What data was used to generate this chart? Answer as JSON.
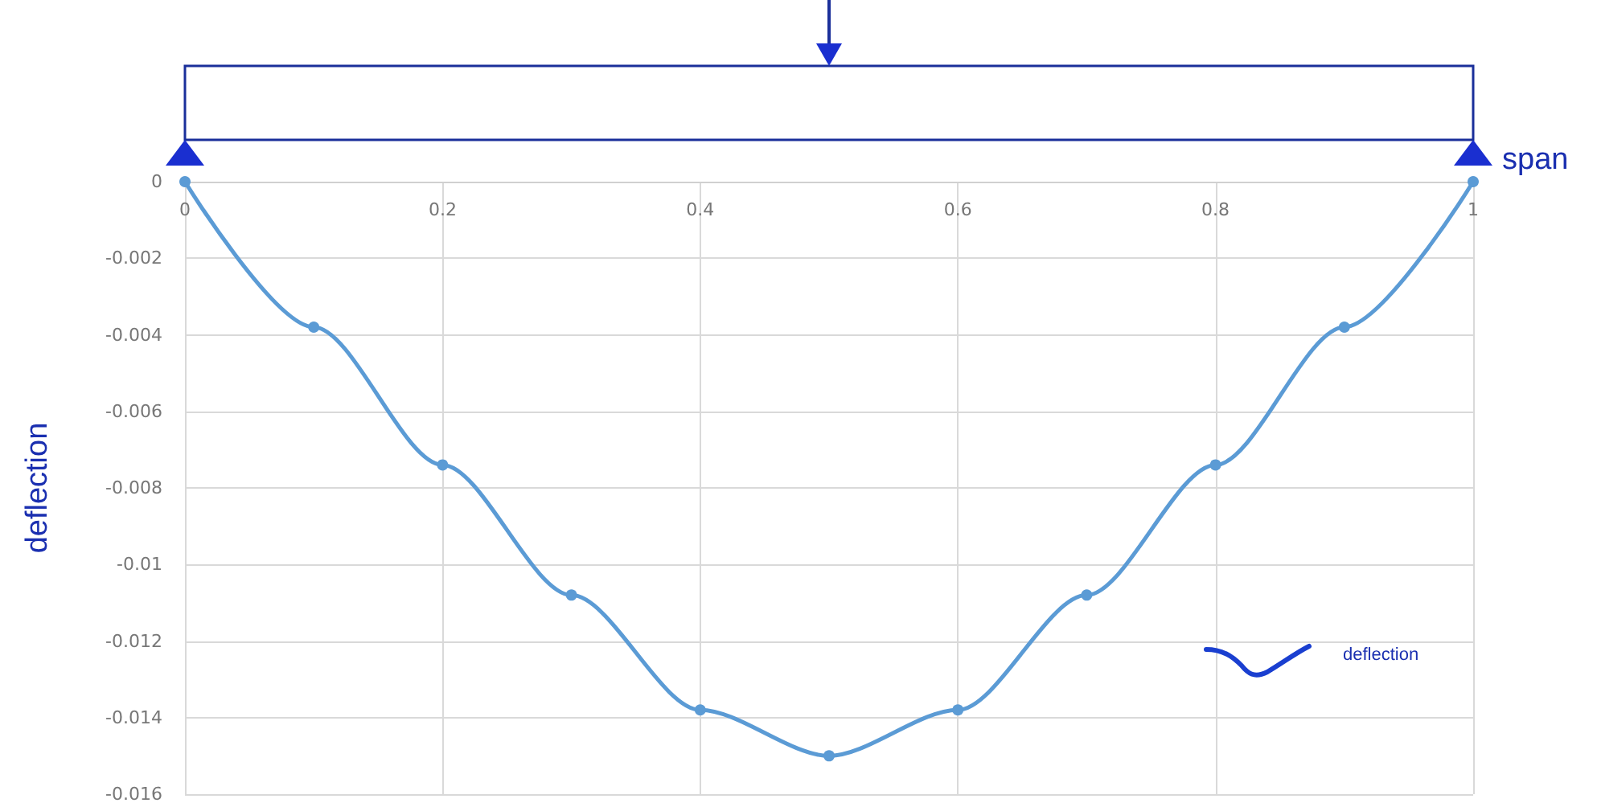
{
  "chart_data": {
    "type": "line",
    "xlabel": "span",
    "ylabel": "deflection",
    "x": [
      0,
      0.1,
      0.2,
      0.3,
      0.4,
      0.5,
      0.6,
      0.7,
      0.8,
      0.9,
      1
    ],
    "series": [
      {
        "color": "#5b9bd5",
        "values": [
          0,
          -0.0038,
          -0.0074,
          -0.0108,
          -0.0138,
          -0.015,
          -0.0138,
          -0.0108,
          -0.0074,
          -0.0038,
          0
        ]
      }
    ],
    "xlim": [
      0,
      1
    ],
    "xticks": [
      0,
      0.2,
      0.4,
      0.6,
      0.8,
      1
    ],
    "ylim": [
      -0.016,
      0
    ],
    "yticks": [
      0,
      -0.002,
      -0.004,
      -0.006,
      -0.008,
      -0.01,
      -0.012,
      -0.014,
      -0.016
    ],
    "grid": true,
    "marker": "circle",
    "line_style": "solid",
    "annotations": [
      "deflection"
    ]
  }
}
